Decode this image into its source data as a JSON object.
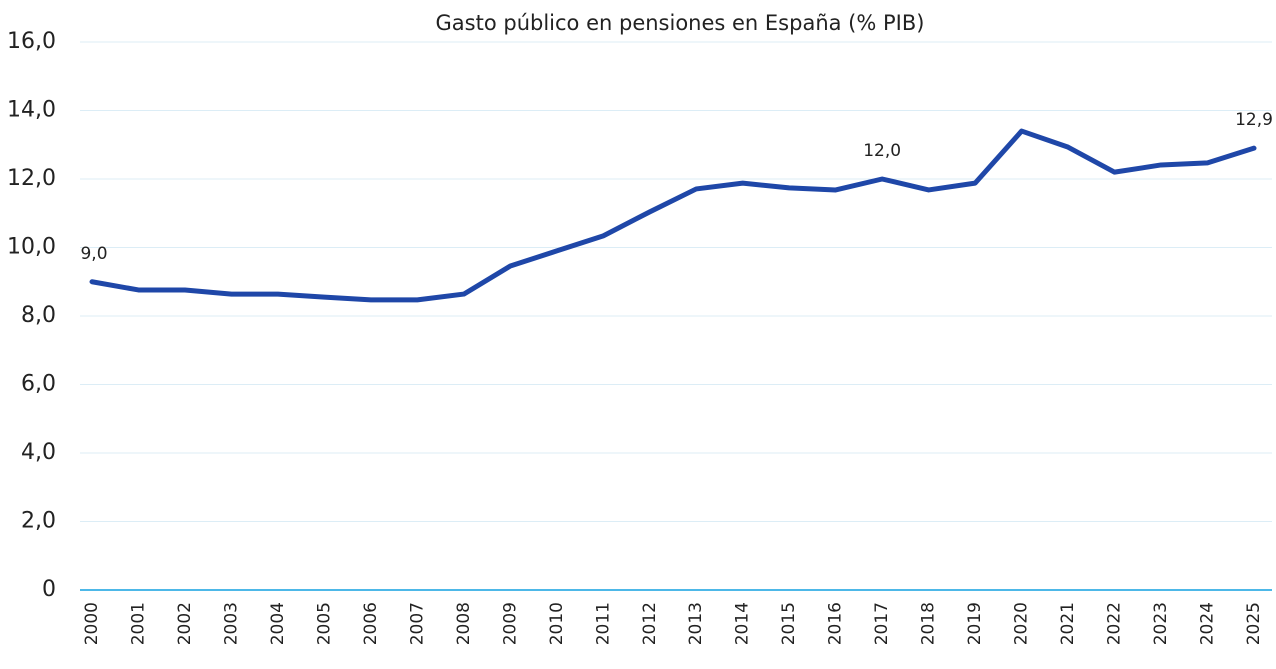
{
  "chart_data": {
    "type": "line",
    "title": "Gasto público en pensiones en España (% PIB)",
    "categories": [
      "2000",
      "2001",
      "2002",
      "2003",
      "2004",
      "2005",
      "2006",
      "2007",
      "2008",
      "2009",
      "2010",
      "2011",
      "2012",
      "2013",
      "2014",
      "2015",
      "2016",
      "2017",
      "2018",
      "2019",
      "2020",
      "2021",
      "2022",
      "2023",
      "2024",
      "2025"
    ],
    "series": [
      {
        "name": "Gasto público en pensiones",
        "color": "#1f47a8",
        "values": [
          9.0,
          8.76,
          8.76,
          8.64,
          8.64,
          8.55,
          8.47,
          8.47,
          8.64,
          9.46,
          9.9,
          10.34,
          11.04,
          11.71,
          11.88,
          11.74,
          11.68,
          12.0,
          11.68,
          11.88,
          13.4,
          12.93,
          12.2,
          12.41,
          12.47,
          12.9
        ],
        "value_labels": [
          "9,0",
          null,
          null,
          null,
          null,
          null,
          null,
          null,
          null,
          null,
          null,
          null,
          null,
          null,
          null,
          null,
          null,
          "12,0",
          null,
          null,
          null,
          null,
          null,
          null,
          null,
          "12,9"
        ]
      }
    ],
    "ylim": [
      0,
      16
    ],
    "yticks": [
      0,
      {
        "value": 2,
        "label": "2,0"
      },
      {
        "value": 4,
        "label": "4,0"
      },
      {
        "value": 6,
        "label": "6,0"
      },
      {
        "value": 8,
        "label": "8,0"
      },
      {
        "value": 10,
        "label": "10,0"
      },
      {
        "value": 12,
        "label": "12,0"
      },
      {
        "value": 14,
        "label": "14,0"
      },
      {
        "value": 16,
        "label": "16,0"
      }
    ],
    "grid": true
  }
}
